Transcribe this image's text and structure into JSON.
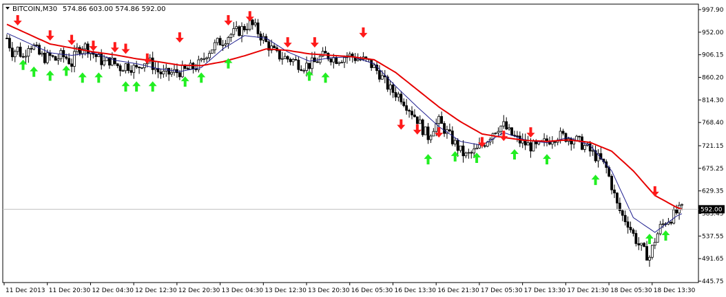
{
  "chart_data": {
    "type": "candlestick",
    "title": "BITCOIN,M30",
    "ohlc_header": "574.86 603.00 574.86 592.00",
    "current_price_label": "592.00",
    "y_tick_labels": [
      "997.90",
      "952.00",
      "906.15",
      "860.20",
      "814.30",
      "768.40",
      "721.15",
      "675.25",
      "629.35",
      "583.45",
      "537.55",
      "491.65",
      "445.75"
    ],
    "ylim": [
      445.75,
      997.9
    ],
    "x_tick_labels": [
      "11 Dec 2013",
      "11 Dec 20:30",
      "12 Dec 04:30",
      "12 Dec 12:30",
      "12 Dec 20:30",
      "13 Dec 04:30",
      "13 Dec 12:30",
      "13 Dec 20:30",
      "16 Dec 05:30",
      "16 Dec 13:30",
      "16 Dec 21:30",
      "17 Dec 05:30",
      "17 Dec 13:30",
      "17 Dec 21:30",
      "18 Dec 05:30",
      "18 Dec 13:30"
    ],
    "x_tick_bars": [
      0,
      16,
      32,
      48,
      64,
      80,
      96,
      112,
      128,
      144,
      160,
      176,
      192,
      208,
      224,
      240
    ],
    "close_path": [
      [
        0,
        940
      ],
      [
        2,
        912
      ],
      [
        4,
        918
      ],
      [
        6,
        900
      ],
      [
        8,
        928
      ],
      [
        10,
        922
      ],
      [
        12,
        906
      ],
      [
        14,
        900
      ],
      [
        16,
        902
      ],
      [
        18,
        896
      ],
      [
        20,
        904
      ],
      [
        22,
        900
      ],
      [
        24,
        888
      ],
      [
        26,
        915
      ],
      [
        28,
        925
      ],
      [
        30,
        920
      ],
      [
        32,
        908
      ],
      [
        34,
        898
      ],
      [
        36,
        890
      ],
      [
        38,
        895
      ],
      [
        40,
        888
      ],
      [
        42,
        880
      ],
      [
        44,
        885
      ],
      [
        46,
        882
      ],
      [
        48,
        876
      ],
      [
        50,
        890
      ],
      [
        52,
        895
      ],
      [
        54,
        885
      ],
      [
        56,
        872
      ],
      [
        58,
        866
      ],
      [
        60,
        868
      ],
      [
        62,
        870
      ],
      [
        64,
        872
      ],
      [
        66,
        874
      ],
      [
        68,
        878
      ],
      [
        70,
        882
      ],
      [
        72,
        890
      ],
      [
        74,
        910
      ],
      [
        76,
        920
      ],
      [
        78,
        930
      ],
      [
        80,
        935
      ],
      [
        82,
        945
      ],
      [
        84,
        950
      ],
      [
        86,
        955
      ],
      [
        88,
        962
      ],
      [
        90,
        970
      ],
      [
        92,
        960
      ],
      [
        94,
        945
      ],
      [
        96,
        930
      ],
      [
        98,
        918
      ],
      [
        100,
        905
      ],
      [
        102,
        902
      ],
      [
        104,
        898
      ],
      [
        106,
        895
      ],
      [
        108,
        888
      ],
      [
        110,
        884
      ],
      [
        112,
        886
      ],
      [
        114,
        890
      ],
      [
        116,
        900
      ],
      [
        118,
        905
      ],
      [
        120,
        902
      ],
      [
        122,
        898
      ],
      [
        124,
        900
      ],
      [
        126,
        905
      ],
      [
        128,
        902
      ],
      [
        130,
        898
      ],
      [
        132,
        895
      ],
      [
        134,
        890
      ],
      [
        136,
        880
      ],
      [
        138,
        868
      ],
      [
        140,
        850
      ],
      [
        142,
        835
      ],
      [
        144,
        828
      ],
      [
        146,
        820
      ],
      [
        148,
        805
      ],
      [
        150,
        790
      ],
      [
        152,
        775
      ],
      [
        154,
        755
      ],
      [
        156,
        740
      ],
      [
        158,
        760
      ],
      [
        160,
        770
      ],
      [
        162,
        755
      ],
      [
        164,
        740
      ],
      [
        166,
        725
      ],
      [
        168,
        710
      ],
      [
        170,
        700
      ],
      [
        172,
        705
      ],
      [
        174,
        712
      ],
      [
        176,
        722
      ],
      [
        178,
        735
      ],
      [
        180,
        750
      ],
      [
        182,
        760
      ],
      [
        184,
        762
      ],
      [
        186,
        748
      ],
      [
        188,
        738
      ],
      [
        190,
        730
      ],
      [
        192,
        725
      ],
      [
        194,
        720
      ],
      [
        196,
        718
      ],
      [
        198,
        724
      ],
      [
        200,
        730
      ],
      [
        202,
        738
      ],
      [
        204,
        742
      ],
      [
        206,
        740
      ],
      [
        208,
        738
      ],
      [
        210,
        735
      ],
      [
        212,
        728
      ],
      [
        214,
        720
      ],
      [
        216,
        710
      ],
      [
        218,
        700
      ],
      [
        220,
        690
      ],
      [
        222,
        675
      ],
      [
        224,
        640
      ],
      [
        226,
        600
      ],
      [
        228,
        578
      ],
      [
        230,
        565
      ],
      [
        232,
        540
      ],
      [
        234,
        520
      ],
      [
        236,
        505
      ],
      [
        238,
        495
      ],
      [
        240,
        530
      ],
      [
        242,
        555
      ],
      [
        244,
        568
      ],
      [
        246,
        575
      ],
      [
        248,
        585
      ],
      [
        250,
        592
      ]
    ],
    "series": [
      {
        "name": "",
        "color": "#1f1f8f",
        "values": [
          [
            0,
            950
          ],
          [
            8,
            930
          ],
          [
            16,
            910
          ],
          [
            24,
            905
          ],
          [
            32,
            910
          ],
          [
            40,
            895
          ],
          [
            48,
            888
          ],
          [
            56,
            878
          ],
          [
            64,
            872
          ],
          [
            72,
            880
          ],
          [
            80,
            918
          ],
          [
            88,
            945
          ],
          [
            96,
            940
          ],
          [
            104,
            912
          ],
          [
            112,
            893
          ],
          [
            120,
            900
          ],
          [
            128,
            902
          ],
          [
            136,
            888
          ],
          [
            144,
            842
          ],
          [
            152,
            800
          ],
          [
            160,
            760
          ],
          [
            168,
            730
          ],
          [
            176,
            722
          ],
          [
            184,
            748
          ],
          [
            192,
            733
          ],
          [
            200,
            727
          ],
          [
            208,
            738
          ],
          [
            216,
            722
          ],
          [
            224,
            670
          ],
          [
            232,
            575
          ],
          [
            240,
            545
          ],
          [
            248,
            578
          ],
          [
            250,
            583
          ]
        ]
      },
      {
        "name": "",
        "color": "#e60000",
        "values": [
          [
            0,
            968
          ],
          [
            8,
            948
          ],
          [
            16,
            928
          ],
          [
            24,
            920
          ],
          [
            32,
            912
          ],
          [
            40,
            906
          ],
          [
            48,
            898
          ],
          [
            56,
            892
          ],
          [
            64,
            885
          ],
          [
            72,
            884
          ],
          [
            80,
            892
          ],
          [
            88,
            904
          ],
          [
            96,
            918
          ],
          [
            104,
            915
          ],
          [
            112,
            908
          ],
          [
            120,
            905
          ],
          [
            128,
            902
          ],
          [
            136,
            896
          ],
          [
            144,
            870
          ],
          [
            152,
            835
          ],
          [
            160,
            800
          ],
          [
            168,
            770
          ],
          [
            176,
            745
          ],
          [
            184,
            738
          ],
          [
            192,
            732
          ],
          [
            200,
            730
          ],
          [
            208,
            733
          ],
          [
            216,
            728
          ],
          [
            224,
            710
          ],
          [
            232,
            670
          ],
          [
            240,
            620
          ],
          [
            248,
            596
          ],
          [
            250,
            592
          ]
        ]
      }
    ],
    "signals": {
      "down": [
        [
          4,
          970
        ],
        [
          16,
          939
        ],
        [
          24,
          930
        ],
        [
          32,
          918
        ],
        [
          40,
          915
        ],
        [
          44,
          912
        ],
        [
          52,
          892
        ],
        [
          64,
          935
        ],
        [
          82,
          970
        ],
        [
          90,
          978
        ],
        [
          104,
          925
        ],
        [
          114,
          925
        ],
        [
          132,
          945
        ],
        [
          146,
          758
        ],
        [
          152,
          748
        ],
        [
          160,
          742
        ],
        [
          176,
          722
        ],
        [
          184,
          735
        ],
        [
          194,
          742
        ],
        [
          240,
          622
        ]
      ],
      "up": [
        [
          6,
          892
        ],
        [
          10,
          878
        ],
        [
          16,
          870
        ],
        [
          22,
          880
        ],
        [
          28,
          866
        ],
        [
          34,
          866
        ],
        [
          44,
          848
        ],
        [
          48,
          848
        ],
        [
          54,
          848
        ],
        [
          66,
          858
        ],
        [
          72,
          866
        ],
        [
          82,
          895
        ],
        [
          112,
          870
        ],
        [
          118,
          866
        ],
        [
          156,
          700
        ],
        [
          166,
          706
        ],
        [
          174,
          703
        ],
        [
          188,
          710
        ],
        [
          200,
          700
        ],
        [
          218,
          658
        ],
        [
          238,
          538
        ],
        [
          244,
          545
        ]
      ]
    },
    "grid": false,
    "legend": "none"
  }
}
